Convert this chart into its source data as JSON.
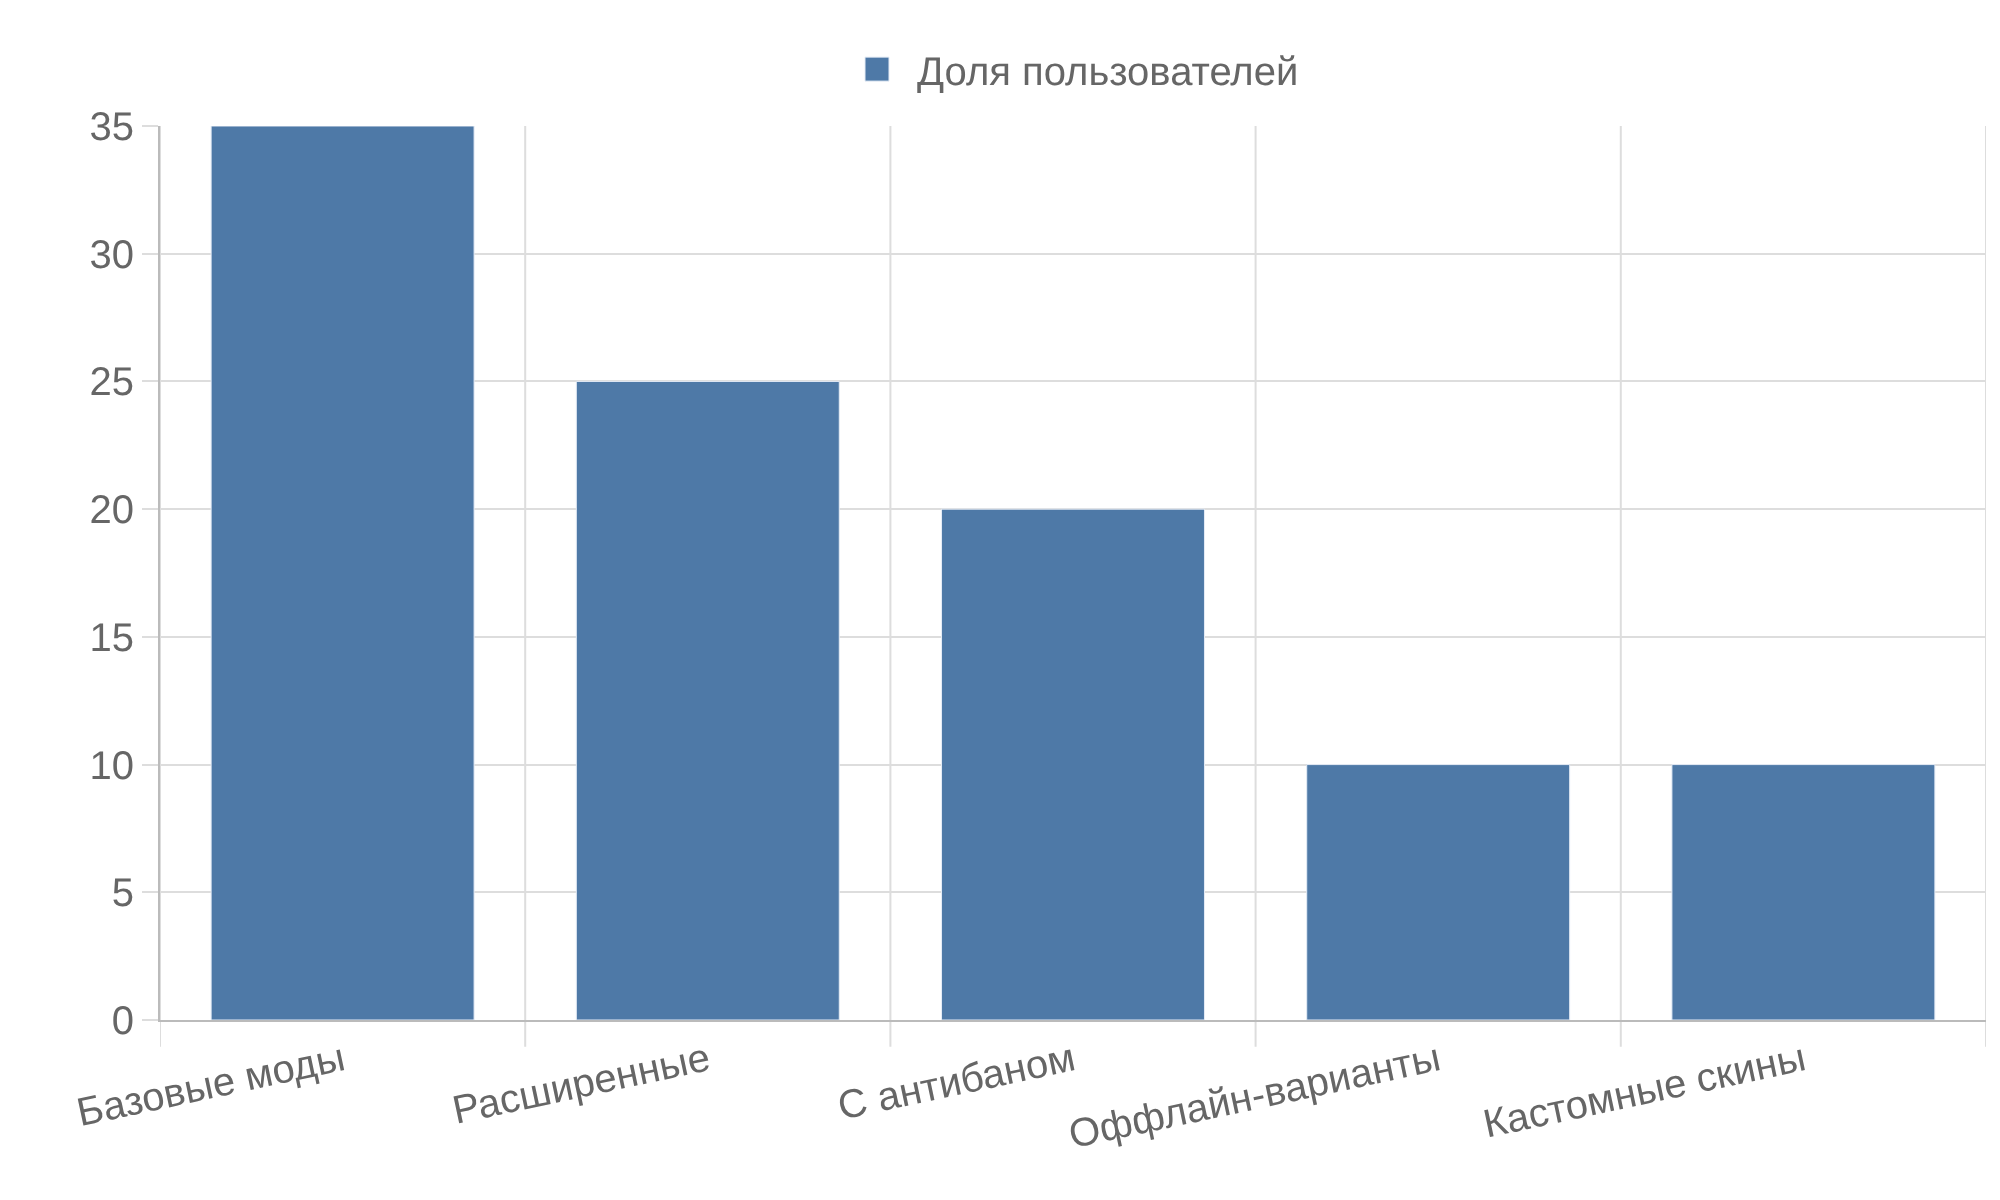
{
  "chart_data": {
    "type": "bar",
    "categories": [
      "Базовые моды",
      "Расширенные",
      "С антибаном",
      "Оффлайн-варианты",
      "Кастомные скины"
    ],
    "series": [
      {
        "name": "Доля пользователей",
        "color": "#4e79a7",
        "values": [
          35,
          25,
          20,
          10,
          10
        ]
      }
    ],
    "ylim": [
      0,
      35
    ],
    "yticks": [
      0,
      5,
      10,
      15,
      20,
      25,
      30,
      35
    ],
    "grid": true,
    "legend": "top"
  }
}
